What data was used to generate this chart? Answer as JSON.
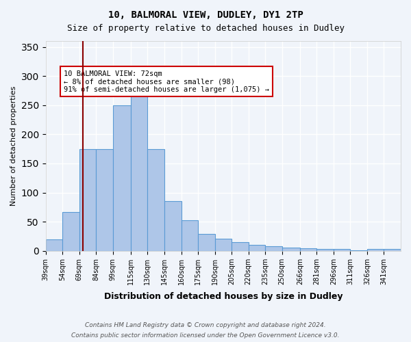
{
  "title1": "10, BALMORAL VIEW, DUDLEY, DY1 2TP",
  "title2": "Size of property relative to detached houses in Dudley",
  "xlabel": "Distribution of detached houses by size in Dudley",
  "ylabel": "Number of detached properties",
  "bin_edges": [
    39,
    54,
    69,
    84,
    99,
    115,
    130,
    145,
    160,
    175,
    190,
    205,
    220,
    235,
    250,
    266,
    281,
    296,
    311,
    326,
    341,
    356
  ],
  "bin_labels": [
    "39sqm",
    "54sqm",
    "69sqm",
    "84sqm",
    "99sqm",
    "115sqm",
    "130sqm",
    "145sqm",
    "160sqm",
    "175sqm",
    "190sqm",
    "205sqm",
    "220sqm",
    "235sqm",
    "250sqm",
    "266sqm",
    "281sqm",
    "296sqm",
    "311sqm",
    "326sqm",
    "341sqm"
  ],
  "bar_heights": [
    20,
    67,
    175,
    175,
    250,
    283,
    175,
    85,
    52,
    29,
    21,
    15,
    10,
    8,
    6,
    5,
    3,
    3,
    1,
    3,
    3
  ],
  "bar_color": "#aec6e8",
  "bar_edge_color": "#5b9bd5",
  "property_size": 72,
  "vline_color": "#8b0000",
  "annotation_text": "10 BALMORAL VIEW: 72sqm\n← 8% of detached houses are smaller (98)\n91% of semi-detached houses are larger (1,075) →",
  "annotation_box_color": "#ffffff",
  "annotation_box_edge": "#cc0000",
  "ylim": [
    0,
    360
  ],
  "background_color": "#f0f4fa",
  "grid_color": "#ffffff",
  "footnote1": "Contains HM Land Registry data © Crown copyright and database right 2024.",
  "footnote2": "Contains public sector information licensed under the Open Government Licence v3.0."
}
